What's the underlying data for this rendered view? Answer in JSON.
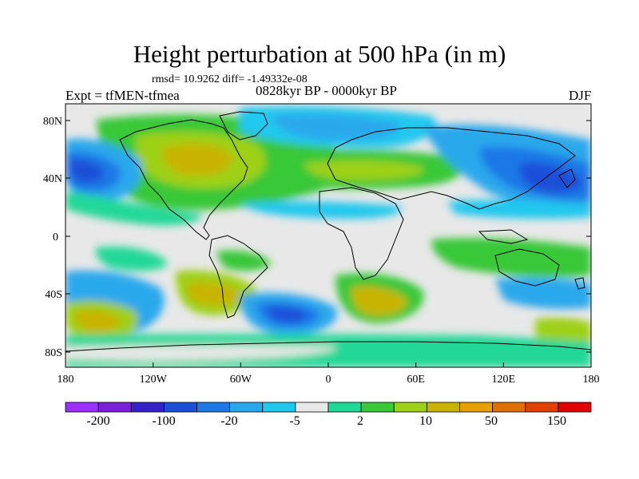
{
  "header": {
    "title": "Height perturbation at 500 hPa (in m)",
    "stats": "rmsd= 10.9262 diff= -1.49332e-08",
    "experiment": "Expt = tfMEN-tfmea",
    "period": "0828kyr BP - 0000kyr BP",
    "season": "DJF"
  },
  "axes": {
    "y_ticks": [
      "80N",
      "40N",
      "0",
      "40S",
      "80S"
    ],
    "x_ticks": [
      "180",
      "120W",
      "60W",
      "0",
      "60E",
      "120E",
      "180"
    ]
  },
  "colorbar": {
    "colors": [
      "#9b30ff",
      "#7b20d8",
      "#3422c8",
      "#1a50d8",
      "#1e78e6",
      "#2aa8ec",
      "#20c8ee",
      "#e8e8e8",
      "#20d898",
      "#38c838",
      "#9ed018",
      "#c8b400",
      "#e8a000",
      "#e07000",
      "#e04000",
      "#e00000"
    ],
    "labels": [
      "-200",
      "-100",
      "-20",
      "-5",
      "2",
      "10",
      "50",
      "150"
    ]
  },
  "map": {
    "background": "#e8e8e8",
    "coast_color": "#000000"
  }
}
